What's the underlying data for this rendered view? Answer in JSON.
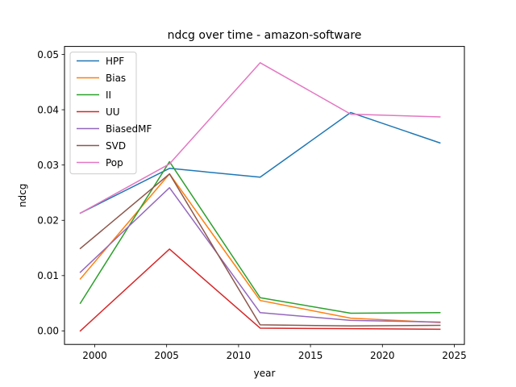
{
  "chart_data": {
    "type": "line",
    "title": "ndcg over time - amazon-software",
    "xlabel": "year",
    "ylabel": "ndcg",
    "xlim": [
      1997.9,
      2025.7
    ],
    "ylim": [
      -0.00245,
      0.05145
    ],
    "xticks": [
      2000,
      2005,
      2010,
      2015,
      2020,
      2025
    ],
    "xtick_labels": [
      "2000",
      "2005",
      "2010",
      "2015",
      "2020",
      "2025"
    ],
    "yticks": [
      0.0,
      0.01,
      0.02,
      0.03,
      0.04,
      0.05
    ],
    "ytick_labels": [
      "0.00",
      "0.01",
      "0.02",
      "0.03",
      "0.04",
      "0.05"
    ],
    "grid": false,
    "legend_position": "upper-left",
    "x": [
      1999,
      2005.2,
      2011.5,
      2017.8,
      2024
    ],
    "series": [
      {
        "name": "HPF",
        "color": "#1f77b4",
        "values": [
          0.0213,
          0.0294,
          0.0278,
          0.0395,
          0.034
        ]
      },
      {
        "name": "Bias",
        "color": "#ff7f0e",
        "values": [
          0.0094,
          0.0284,
          0.0055,
          0.0023,
          0.0015
        ]
      },
      {
        "name": "II",
        "color": "#2ca02c",
        "values": [
          0.005,
          0.0306,
          0.006,
          0.0032,
          0.0033
        ]
      },
      {
        "name": "UU",
        "color": "#d62728",
        "values": [
          0.0,
          0.0148,
          0.0005,
          0.0004,
          0.0003
        ]
      },
      {
        "name": "BiasedMF",
        "color": "#9467bd",
        "values": [
          0.0106,
          0.0259,
          0.0033,
          0.0019,
          0.0016
        ]
      },
      {
        "name": "SVD",
        "color": "#8c564b",
        "values": [
          0.0149,
          0.0284,
          0.0011,
          0.0009,
          0.001
        ]
      },
      {
        "name": "Pop",
        "color": "#e377c2",
        "values": [
          0.0213,
          0.0302,
          0.0485,
          0.0392,
          0.0387
        ]
      }
    ]
  }
}
